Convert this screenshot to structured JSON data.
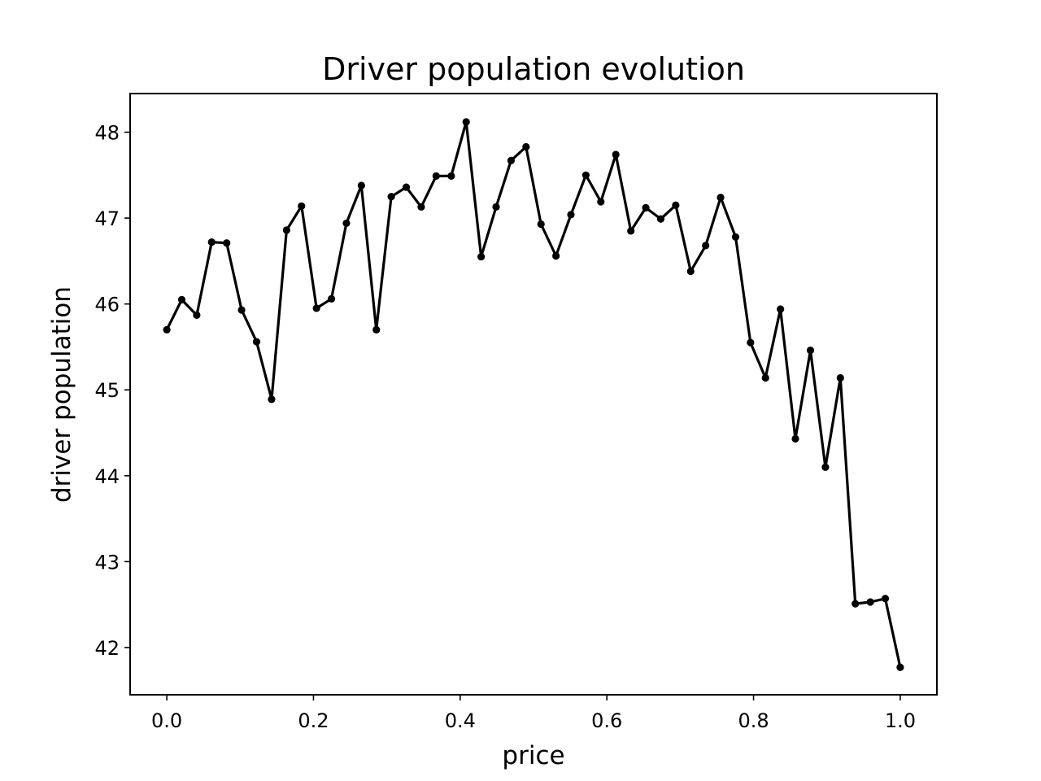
{
  "chart_data": {
    "type": "line",
    "title": "Driver population evolution",
    "xlabel": "price",
    "ylabel": "driver population",
    "xlim": [
      -0.05,
      1.05
    ],
    "ylim": [
      41.45,
      48.45
    ],
    "xticks": [
      0.0,
      0.2,
      0.4,
      0.6,
      0.8,
      1.0
    ],
    "xtick_labels": [
      "0.0",
      "0.2",
      "0.4",
      "0.6",
      "0.8",
      "1.0"
    ],
    "yticks": [
      42,
      43,
      44,
      45,
      46,
      47,
      48
    ],
    "ytick_labels": [
      "42",
      "43",
      "44",
      "45",
      "46",
      "47",
      "48"
    ],
    "grid": false,
    "legend": "none",
    "colors": {
      "line": "#000000",
      "marker": "#000000"
    },
    "series": [
      {
        "x": [
          0.0,
          0.0204,
          0.0408,
          0.0612,
          0.0816,
          0.102,
          0.1224,
          0.1429,
          0.1633,
          0.1837,
          0.2041,
          0.2245,
          0.2449,
          0.2653,
          0.2857,
          0.3061,
          0.3265,
          0.3469,
          0.3673,
          0.3878,
          0.4082,
          0.4286,
          0.449,
          0.4694,
          0.4898,
          0.5102,
          0.5306,
          0.551,
          0.5714,
          0.5918,
          0.6122,
          0.6327,
          0.6531,
          0.6735,
          0.6939,
          0.7143,
          0.7347,
          0.7551,
          0.7755,
          0.7959,
          0.8163,
          0.8367,
          0.8571,
          0.8776,
          0.898,
          0.9184,
          0.9388,
          0.9592,
          0.9796,
          1.0
        ],
        "y": [
          45.7,
          46.05,
          45.87,
          46.72,
          46.71,
          45.93,
          45.56,
          44.89,
          46.86,
          47.14,
          45.95,
          46.06,
          46.94,
          47.38,
          45.7,
          47.25,
          47.36,
          47.13,
          47.49,
          47.49,
          48.12,
          46.55,
          47.13,
          47.67,
          47.83,
          46.93,
          46.56,
          47.04,
          47.5,
          47.19,
          47.74,
          46.85,
          47.12,
          46.99,
          47.15,
          46.38,
          46.68,
          47.24,
          46.78,
          45.55,
          45.14,
          45.94,
          44.43,
          45.46,
          44.1,
          45.14,
          42.51,
          42.53,
          42.57,
          41.77
        ]
      }
    ]
  }
}
